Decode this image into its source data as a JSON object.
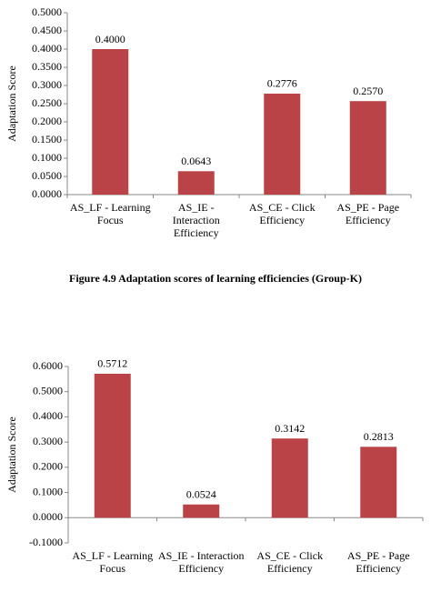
{
  "chart_data": [
    {
      "type": "bar",
      "y_label": "Adaptation Score",
      "categories": [
        "AS_LF - Learning Focus",
        "AS_IE - Interaction Efficiency",
        "AS_CE - Click Efficiency",
        "AS_PE - Page Efficiency"
      ],
      "values": [
        0.4,
        0.0643,
        0.2776,
        0.257
      ],
      "value_labels": [
        "0.4000",
        "0.0643",
        "0.2776",
        "0.2570"
      ],
      "color": "#b94346",
      "ylim": [
        0,
        0.5
      ],
      "yticks": [
        {
          "value": 0,
          "label": "0.0000"
        },
        {
          "value": 0.05,
          "label": "0.0500"
        },
        {
          "value": 0.1,
          "label": "0.1000"
        },
        {
          "value": 0.15,
          "label": "0.1500"
        },
        {
          "value": 0.2,
          "label": "0.2000"
        },
        {
          "value": 0.25,
          "label": "0.2500"
        },
        {
          "value": 0.3,
          "label": "0.3000"
        },
        {
          "value": 0.35,
          "label": "0.3500"
        },
        {
          "value": 0.4,
          "label": "0.4000"
        },
        {
          "value": 0.45,
          "label": "0.4500"
        },
        {
          "value": 0.5,
          "label": "0.5000"
        }
      ],
      "caption": "Figure 4.9 Adaptation scores of learning efficiencies (Group-K)"
    },
    {
      "type": "bar",
      "y_label": "Adaptation Score",
      "categories": [
        "AS_LF - Learning Focus",
        "AS_IE - Interaction Efficiency",
        "AS_CE - Click Efficiency",
        "AS_PE - Page Efficiency"
      ],
      "values": [
        0.5712,
        0.0524,
        0.3142,
        0.2813
      ],
      "value_labels": [
        "0.5712",
        "0.0524",
        "0.3142",
        "0.2813"
      ],
      "color": "#b94346",
      "ylim": [
        -0.1,
        0.6
      ],
      "yticks": [
        {
          "value": -0.1,
          "label": "-0.1000"
        },
        {
          "value": 0,
          "label": "0.0000"
        },
        {
          "value": 0.1,
          "label": "0.1000"
        },
        {
          "value": 0.2,
          "label": "0.2000"
        },
        {
          "value": 0.3,
          "label": "0.3000"
        },
        {
          "value": 0.4,
          "label": "0.4000"
        },
        {
          "value": 0.5,
          "label": "0.5000"
        },
        {
          "value": 0.6,
          "label": "0.6000"
        }
      ]
    }
  ]
}
